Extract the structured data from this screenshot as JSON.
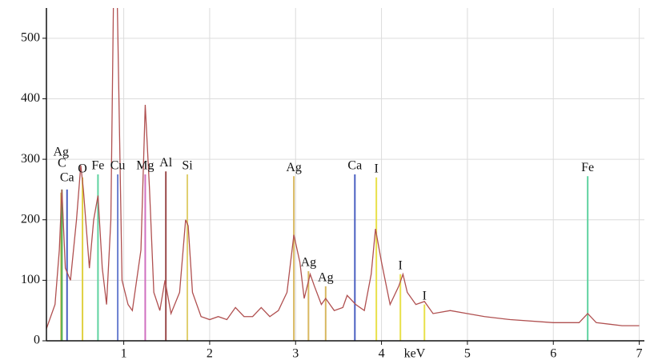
{
  "chart_data": {
    "type": "line",
    "x_label": "keV",
    "xlim": [
      0.1,
      7.06
    ],
    "ylim": [
      0,
      550
    ],
    "xticks": [
      1,
      2,
      3,
      4,
      5,
      6,
      7
    ],
    "yticks": [
      0,
      100,
      200,
      300,
      400,
      500
    ],
    "grid": true,
    "series": [
      {
        "color": "#b05050",
        "x": [
          0.1,
          0.2,
          0.25,
          0.28,
          0.32,
          0.38,
          0.45,
          0.5,
          0.53,
          0.6,
          0.65,
          0.7,
          0.75,
          0.8,
          0.85,
          0.88,
          0.92,
          0.98,
          1.05,
          1.1,
          1.2,
          1.25,
          1.3,
          1.35,
          1.42,
          1.48,
          1.55,
          1.65,
          1.72,
          1.75,
          1.8,
          1.9,
          2.0,
          2.1,
          2.2,
          2.3,
          2.4,
          2.5,
          2.6,
          2.7,
          2.8,
          2.9,
          2.98,
          3.05,
          3.1,
          3.17,
          3.22,
          3.3,
          3.35,
          3.45,
          3.55,
          3.6,
          3.7,
          3.8,
          3.88,
          3.93,
          4.0,
          4.1,
          4.2,
          4.25,
          4.3,
          4.4,
          4.5,
          4.6,
          4.8,
          5.0,
          5.2,
          5.5,
          6.0,
          6.3,
          6.4,
          6.5,
          6.8,
          7.0
        ],
        "values": [
          20,
          60,
          150,
          250,
          120,
          100,
          200,
          290,
          250,
          120,
          200,
          240,
          120,
          60,
          200,
          560,
          600,
          100,
          60,
          50,
          150,
          390,
          250,
          80,
          50,
          100,
          45,
          80,
          200,
          190,
          80,
          40,
          35,
          40,
          35,
          55,
          40,
          40,
          55,
          40,
          50,
          80,
          175,
          130,
          70,
          110,
          90,
          60,
          70,
          50,
          55,
          75,
          60,
          50,
          110,
          185,
          130,
          60,
          90,
          110,
          80,
          60,
          65,
          45,
          50,
          45,
          40,
          35,
          30,
          30,
          45,
          30,
          25,
          25
        ]
      }
    ],
    "element_lines": [
      {
        "label": "Ag",
        "x": 0.27,
        "height": 245,
        "color": "#d8b860"
      },
      {
        "label": "C",
        "x": 0.28,
        "height": 250,
        "color": "#4caf50"
      },
      {
        "label": "Ca",
        "x": 0.34,
        "height": 250,
        "color": "#4a5fc1"
      },
      {
        "label": "O",
        "x": 0.52,
        "height": 270,
        "color": "#e0d040"
      },
      {
        "label": "Fe",
        "x": 0.7,
        "height": 275,
        "color": "#5fd3a0"
      },
      {
        "label": "Cu",
        "x": 0.93,
        "height": 275,
        "color": "#6a7fd0"
      },
      {
        "label": "Mg",
        "x": 1.25,
        "height": 275,
        "color": "#d070c0"
      },
      {
        "label": "Al",
        "x": 1.49,
        "height": 280,
        "color": "#9a4a4a"
      },
      {
        "label": "Si",
        "x": 1.74,
        "height": 275,
        "color": "#e0d070"
      },
      {
        "label": "Ag",
        "x": 2.98,
        "height": 272,
        "color": "#d8b860"
      },
      {
        "label": "Ag",
        "x": 3.15,
        "height": 115,
        "color": "#d8b860"
      },
      {
        "label": "Ag",
        "x": 3.35,
        "height": 90,
        "color": "#d8b860"
      },
      {
        "label": "Ca",
        "x": 3.69,
        "height": 275,
        "color": "#4a5fc1"
      },
      {
        "label": "I",
        "x": 3.94,
        "height": 270,
        "color": "#e8e04a"
      },
      {
        "label": "I",
        "x": 4.22,
        "height": 110,
        "color": "#e8e04a"
      },
      {
        "label": "I",
        "x": 4.5,
        "height": 60,
        "color": "#e8e04a"
      },
      {
        "label": "Fe",
        "x": 6.4,
        "height": 272,
        "color": "#5fd3a0"
      }
    ]
  }
}
